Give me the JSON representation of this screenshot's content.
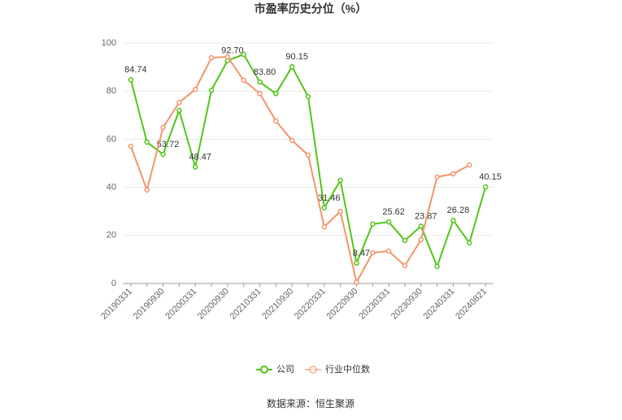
{
  "chart_data": {
    "type": "line",
    "title": "市盈率历史分位（%）",
    "categories": [
      "20190331",
      null,
      "20190930",
      null,
      "20200331",
      null,
      "20200930",
      null,
      "20210331",
      null,
      "20210930",
      null,
      "20220331",
      null,
      "20220930",
      null,
      "20230331",
      null,
      "20230930",
      null,
      "20240331",
      null,
      "20240821"
    ],
    "series": [
      {
        "name": "公司",
        "color": "#52c41a",
        "values": [
          84.74,
          58.8,
          53.72,
          72,
          48.47,
          80.4,
          92.7,
          95.3,
          83.8,
          79,
          90.15,
          77.7,
          31.46,
          42.9,
          8.47,
          24.7,
          25.62,
          17.9,
          23.87,
          7.1,
          26.28,
          16.9,
          40.15
        ],
        "value_labels": [
          "84.74",
          null,
          "53.72",
          null,
          "48.47",
          null,
          "92.70",
          null,
          "83.80",
          null,
          "90.15",
          null,
          "31.46",
          null,
          "8.47",
          null,
          "25.62",
          null,
          "23.87",
          null,
          "26.28",
          null,
          "40.15"
        ]
      },
      {
        "name": "行业中位数",
        "color": "#f4946a",
        "values": [
          57.1,
          38.9,
          64.9,
          75.3,
          80.7,
          93.9,
          94.3,
          84.5,
          79,
          67.6,
          59.5,
          53.4,
          23.6,
          30,
          0.5,
          12.8,
          13.5,
          7.4,
          18.2,
          44.3,
          45.6,
          49.3,
          null
        ]
      }
    ],
    "ylim": [
      0,
      100
    ],
    "yticks": [
      0,
      20,
      40,
      60,
      80,
      100
    ],
    "grid": true,
    "source": "数据来源：恒生聚源"
  }
}
